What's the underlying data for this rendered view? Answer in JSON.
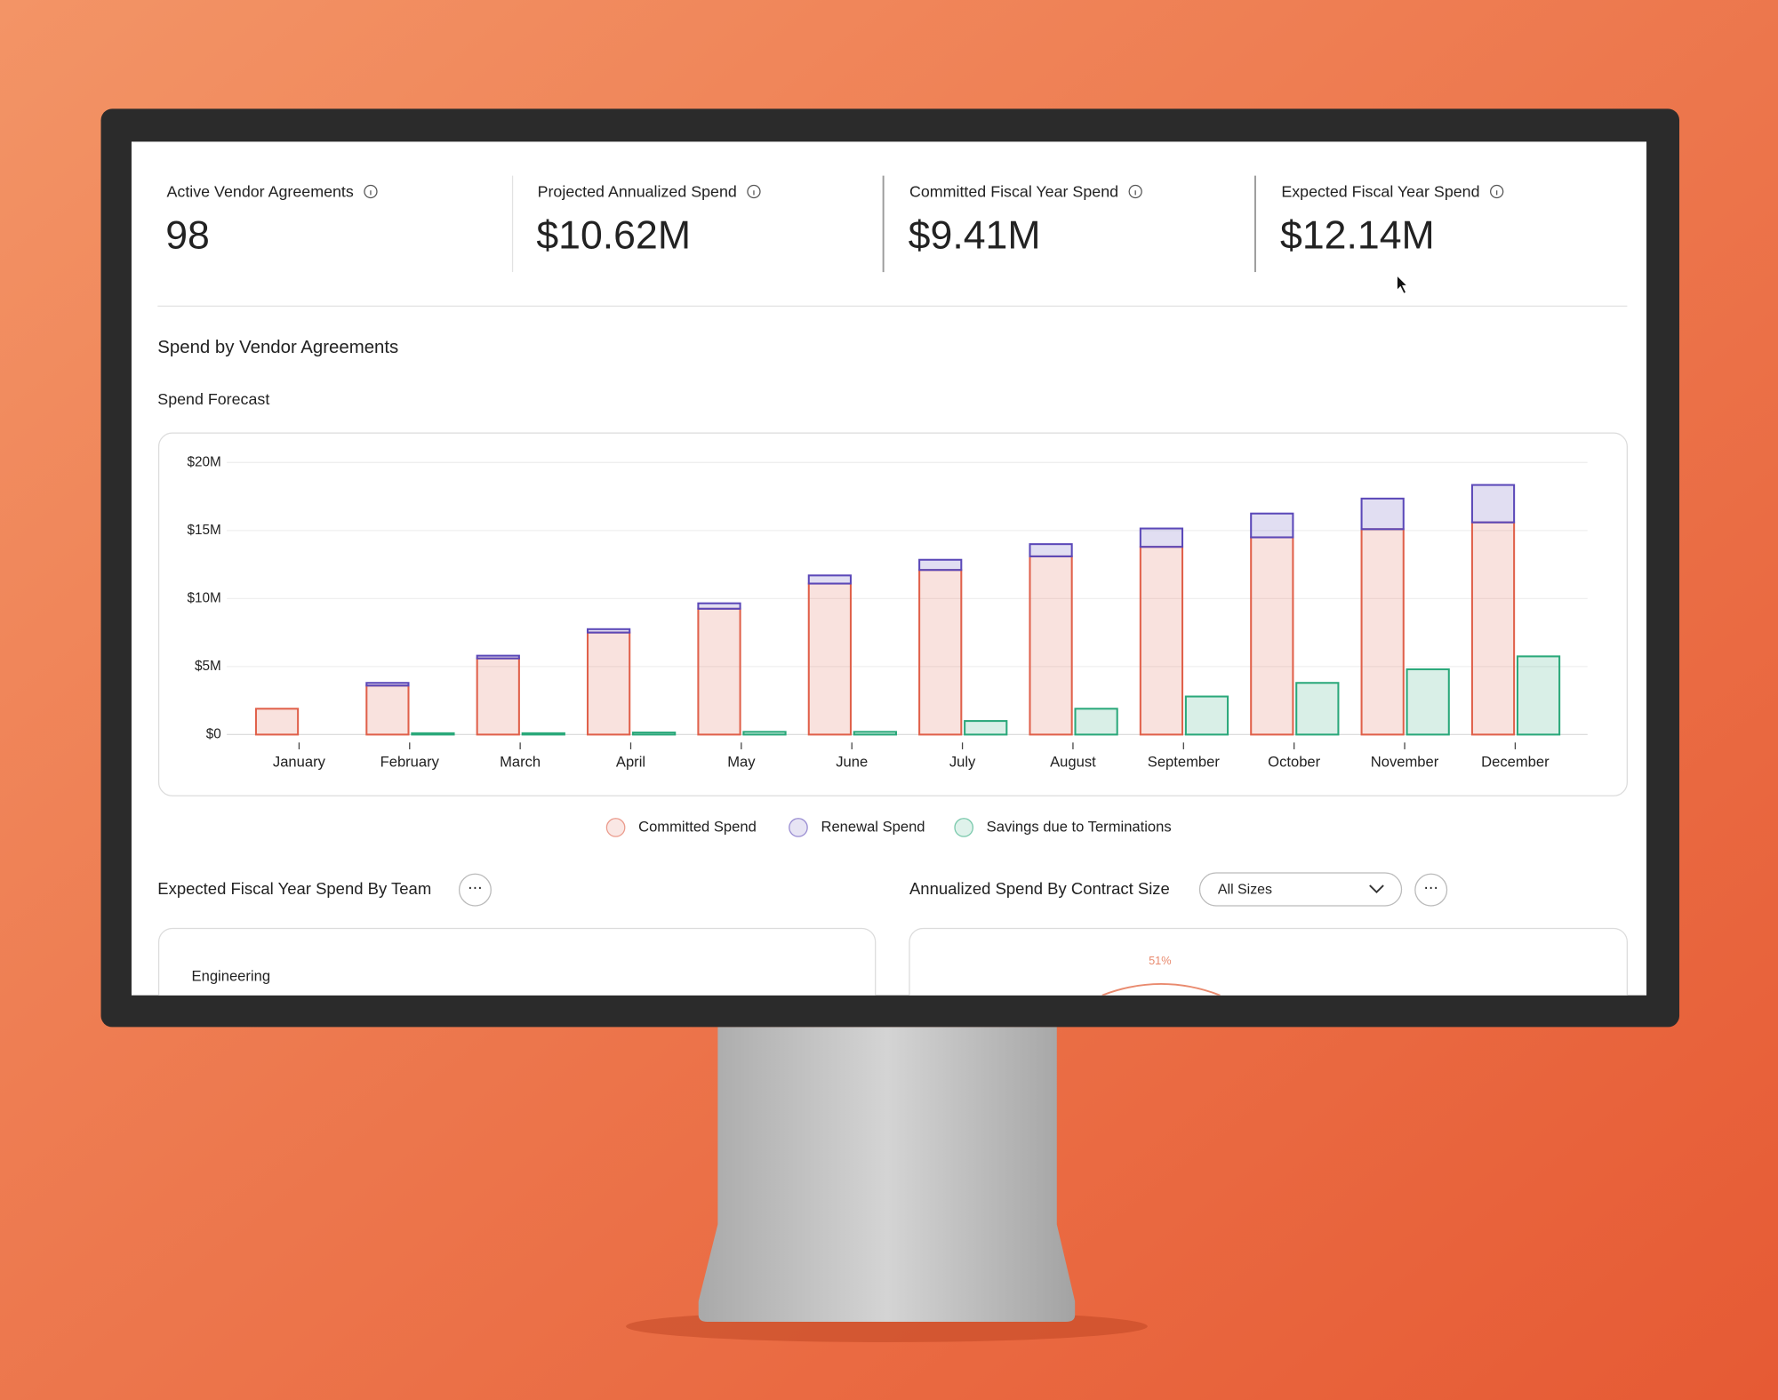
{
  "kpis": [
    {
      "label": "Active Vendor Agreements",
      "value": "98"
    },
    {
      "label": "Projected Annualized Spend",
      "value": "$10.62M"
    },
    {
      "label": "Committed Fiscal Year Spend",
      "value": "$9.41M"
    },
    {
      "label": "Expected Fiscal Year Spend",
      "value": "$12.14M"
    }
  ],
  "section_title": "Spend by Vendor Agreements",
  "chart_data": {
    "type": "bar",
    "title": "Spend Forecast",
    "categories": [
      "January",
      "February",
      "March",
      "April",
      "May",
      "June",
      "July",
      "August",
      "September",
      "October",
      "November",
      "December"
    ],
    "series": [
      {
        "name": "Committed Spend",
        "color": "#e0604a",
        "stack": "spend",
        "values": [
          1.9,
          3.6,
          5.6,
          7.5,
          9.25,
          11.1,
          12.1,
          13.1,
          13.8,
          14.5,
          15.1,
          15.6
        ]
      },
      {
        "name": "Renewal Spend",
        "color": "#5b48b8",
        "stack": "spend",
        "values": [
          0,
          0.2,
          0.2,
          0.25,
          0.4,
          0.6,
          0.75,
          0.9,
          1.35,
          1.75,
          2.25,
          2.75
        ]
      },
      {
        "name": "Savings due to Terminations",
        "color": "#2aa87a",
        "stack": "savings",
        "values": [
          0,
          0.1,
          0.1,
          0.15,
          0.2,
          0.2,
          1.0,
          1.9,
          2.8,
          3.8,
          4.8,
          5.75
        ]
      }
    ],
    "ylim": [
      0,
      20
    ],
    "yticks": [
      {
        "value": 0,
        "label": "$0"
      },
      {
        "value": 5,
        "label": "$5M"
      },
      {
        "value": 10,
        "label": "$10M"
      },
      {
        "value": 15,
        "label": "$15M"
      },
      {
        "value": 20,
        "label": "$20M"
      }
    ],
    "grid": true,
    "legend": "bottom"
  },
  "panels": {
    "team": {
      "title": "Expected Fiscal Year Spend By Team",
      "first_row": "Engineering"
    },
    "size": {
      "title": "Annualized Spend By Contract Size",
      "filter": "All Sizes",
      "donut_label": "51%"
    }
  }
}
